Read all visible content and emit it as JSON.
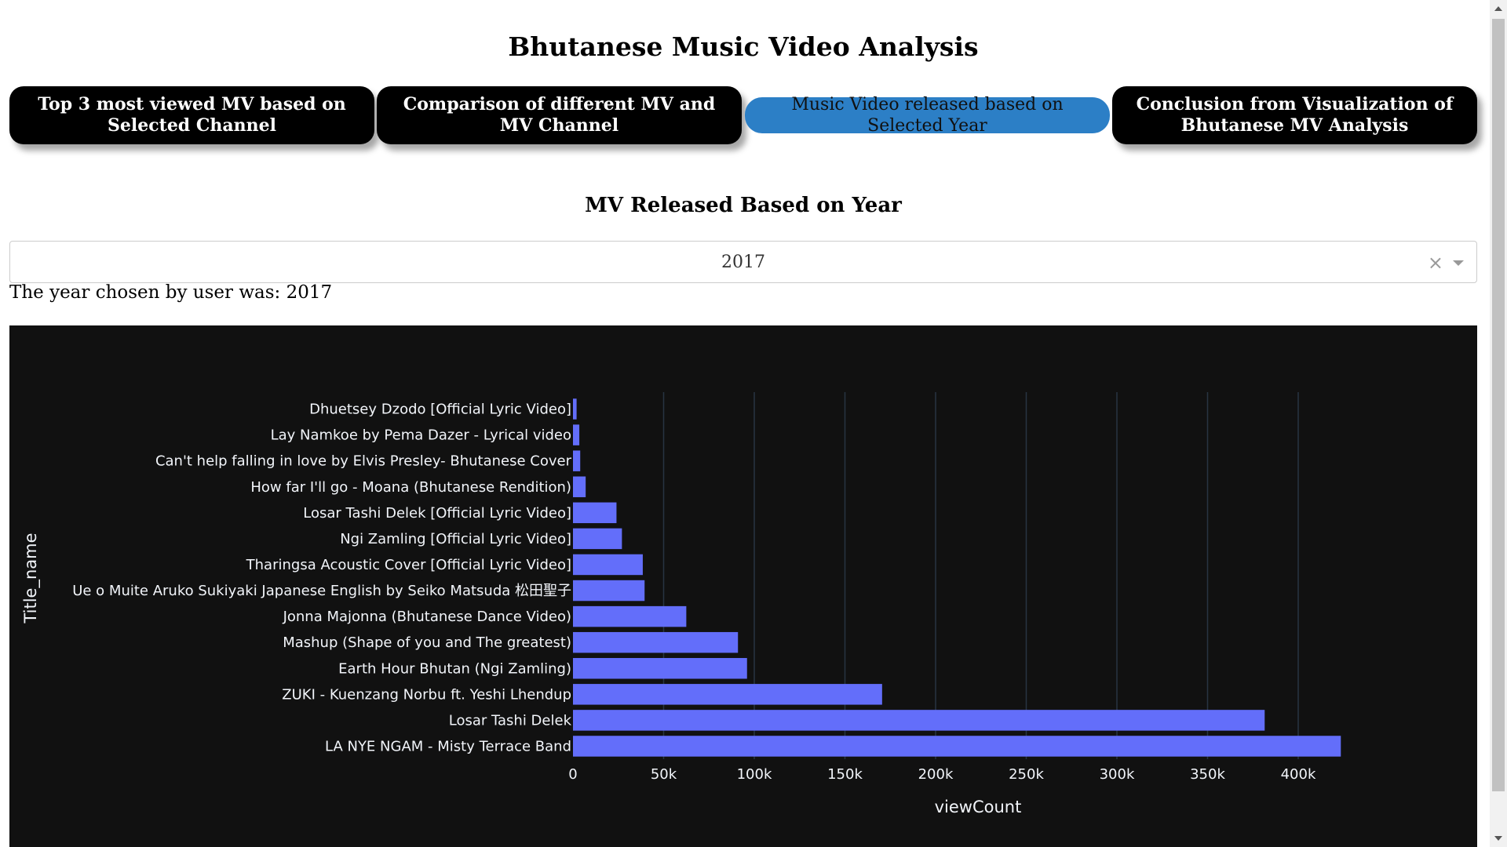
{
  "app": {
    "title": "Bhutanese Music Video Analysis"
  },
  "tabs": [
    {
      "label": "Top 3 most viewed MV based on Selected Channel",
      "active": false
    },
    {
      "label": "Comparison of different MV and MV Channel",
      "active": false
    },
    {
      "label": "Music Video released based on Selected Year",
      "active": true
    },
    {
      "label": "Conclusion from Visualization of Bhutanese MV Analysis",
      "active": false
    }
  ],
  "section": {
    "title": "MV Released Based on Year",
    "dropdown_value": "2017",
    "clear_glyph": "×",
    "chosen_text": "The year chosen by user was: 2017"
  },
  "chart_data": {
    "type": "bar",
    "orientation": "horizontal",
    "xlabel": "viewCount",
    "ylabel": "Title_name",
    "xlim": [
      0,
      430000
    ],
    "xticks": [
      0,
      50000,
      100000,
      150000,
      200000,
      250000,
      300000,
      350000,
      400000
    ],
    "xtick_labels": [
      "0",
      "50k",
      "100k",
      "150k",
      "200k",
      "250k",
      "300k",
      "350k",
      "400k"
    ],
    "bar_color": "#636efa",
    "background": "#111111",
    "grid": true,
    "categories": [
      "Dhuetsey Dzodo [Official Lyric Video]",
      "Lay Namkoe by Pema Dazer - Lyrical video",
      "Can't help falling in love by Elvis Presley- Bhutanese Cover",
      "How far I'll go - Moana (Bhutanese Rendition)",
      "Losar Tashi Delek [Official Lyric Video]",
      "Ngi Zamling [Official Lyric Video]",
      "Tharingsa Acoustic Cover [Official Lyric Video]",
      "Ue o Muite Aruko   Sukiyaki Japanese  English by Seiko Matsuda 松田聖子",
      "Jonna Majonna (Bhutanese Dance Video)",
      "Mashup (Shape of you and The greatest)",
      "Earth Hour Bhutan (Ngi Zamling)",
      "ZUKI - Kuenzang Norbu ft. Yeshi Lhendup",
      "Losar Tashi Delek",
      "LA NYE NGAM - Misty Terrace Band"
    ],
    "values": [
      2000,
      3500,
      4000,
      7000,
      24000,
      27000,
      38500,
      39500,
      62500,
      91000,
      96000,
      170500,
      381500,
      423500
    ]
  }
}
